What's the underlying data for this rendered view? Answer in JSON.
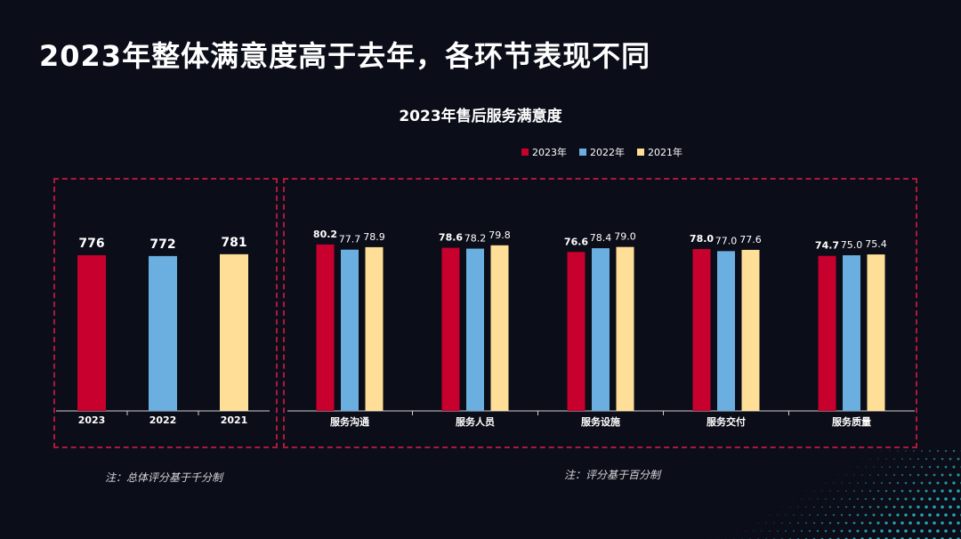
{
  "slide_title": "2023年整体满意度高于去年，各环节表现不同",
  "colors": {
    "y2023": "#c8002d",
    "y2022": "#6aafe0",
    "y2021": "#ffdf98",
    "frame": "#b0183a",
    "background": "#0b0d19"
  },
  "chart_data": [
    {
      "type": "bar",
      "title": "",
      "categories": [
        "2023",
        "2022",
        "2021"
      ],
      "values": [
        776,
        772,
        781
      ],
      "ylim": [
        0,
        900
      ],
      "grid": false,
      "note": "注：总体评分基于千分制"
    },
    {
      "type": "bar",
      "title": "2023年售后服务满意度",
      "categories": [
        "服务沟通",
        "服务人员",
        "服务设施",
        "服务交付",
        "服务质量"
      ],
      "series": [
        {
          "name": "2023年",
          "values": [
            80.2,
            78.6,
            76.6,
            78.0,
            74.7
          ]
        },
        {
          "name": "2022年",
          "values": [
            77.7,
            78.2,
            78.4,
            77.0,
            75.0
          ]
        },
        {
          "name": "2021年",
          "values": [
            78.9,
            79.8,
            79.0,
            77.6,
            75.4
          ]
        }
      ],
      "ylim": [
        0,
        90
      ],
      "grid": false,
      "legend": "top",
      "note": "注：评分基于百分制"
    }
  ]
}
